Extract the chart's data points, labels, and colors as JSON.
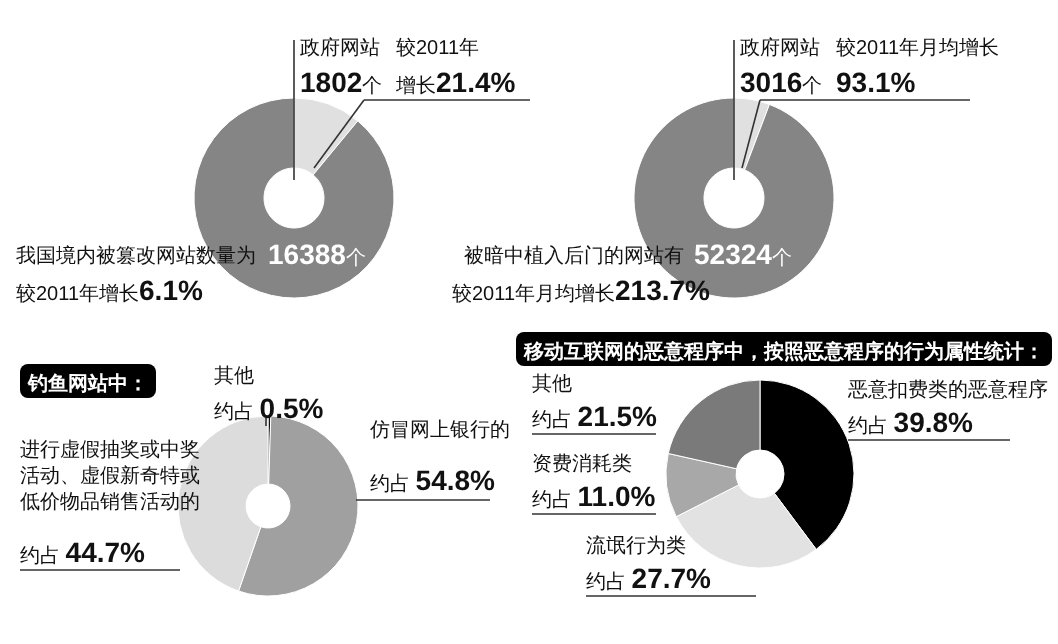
{
  "chart_data": [
    {
      "type": "donut",
      "categories": [
        "政府网站",
        null
      ],
      "values": [
        1802,
        14586
      ],
      "colors": [
        "#e0e0e0",
        "#858585"
      ],
      "value_labels": [
        "1802个",
        null
      ],
      "annotations": [
        "较2011年",
        "增长21.4%",
        "我国境内被篡改网站数量为",
        "16388个",
        "较2011年增长6.1%"
      ]
    },
    {
      "type": "donut",
      "categories": [
        "政府网站",
        null
      ],
      "values": [
        3016,
        49308
      ],
      "colors": [
        "#e0e0e0",
        "#858585"
      ],
      "value_labels": [
        "3016个",
        null
      ],
      "annotations": [
        "较2011年月均增长",
        "93.1%",
        "被暗中植入后门的网站有",
        "52324个",
        "较2011年月均增长213.7%"
      ]
    },
    {
      "type": "donut",
      "title": "钓鱼网站中：",
      "categories": [
        "其他",
        "仿冒网上银行的",
        "进行虚假抽奖或中奖活动、虚假新奇特或低价物品销售活动的"
      ],
      "values": [
        0.5,
        54.8,
        44.7
      ],
      "colors": [
        "#111111",
        "#a0a0a0",
        "#dcdcdc"
      ],
      "value_labels": [
        "约占 0.5%",
        "约占 54.8%",
        "约占 44.7%"
      ]
    },
    {
      "type": "donut",
      "title": "移动互联网的恶意程序中，按照恶意程序的行为属性统计：",
      "categories": [
        "恶意扣费类的恶意程序",
        "流氓行为类",
        "资费消耗类",
        "其他"
      ],
      "values": [
        39.8,
        27.7,
        11.0,
        21.5
      ],
      "colors": [
        "#000000",
        "#e2e2e2",
        "#a8a8a8",
        "#7a7a7a"
      ],
      "value_labels": [
        "约占 39.8%",
        "约占 27.7%",
        "约占 11.0%",
        "约占 21.5%"
      ]
    }
  ]
}
